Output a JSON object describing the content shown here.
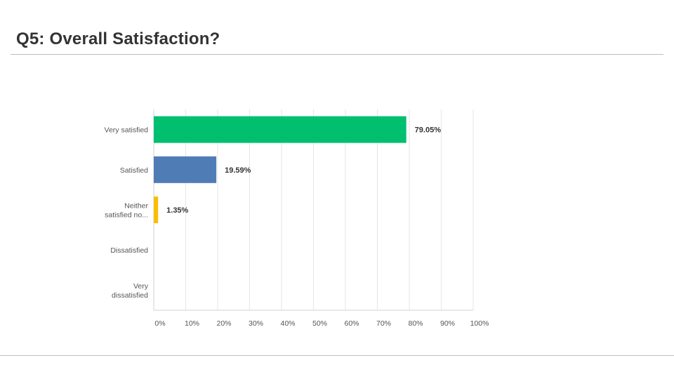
{
  "slide": {
    "title": "Q5: Overall Satisfaction?"
  },
  "chart_data": {
    "type": "bar",
    "orientation": "horizontal",
    "categories": [
      [
        "Very satisfied"
      ],
      [
        "Satisfied"
      ],
      [
        "Neither",
        "satisfied no..."
      ],
      [
        "Dissatisfied"
      ],
      [
        "Very",
        "dissatisfied"
      ]
    ],
    "values": [
      79.05,
      19.59,
      1.35,
      0,
      0
    ],
    "value_labels": [
      "79.05%",
      "19.59%",
      "1.35%",
      "",
      ""
    ],
    "colors": [
      "#00bf6f",
      "#507cb6",
      "#f9be00",
      "#6bc8cd",
      "#ff8b4f"
    ],
    "xlim": [
      0,
      100
    ],
    "xticks": [
      "0%",
      "10%",
      "20%",
      "30%",
      "40%",
      "50%",
      "60%",
      "70%",
      "80%",
      "90%",
      "100%"
    ],
    "grid": true,
    "title": "",
    "xlabel": "",
    "ylabel": ""
  }
}
